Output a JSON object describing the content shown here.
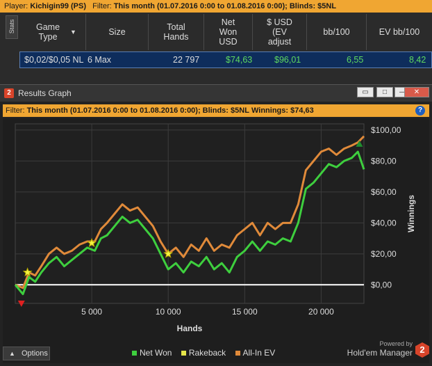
{
  "top_filter": {
    "player_label": "Player:",
    "player_value": "Kichigin99 (PS)",
    "filter_label": "Filter:",
    "filter_value": "This month (01.07.2016 0:00 to 01.08.2016 0:00); Blinds: $5NL"
  },
  "stats_tab_label": "Stats",
  "table": {
    "headers": [
      "Game Type",
      "Size",
      "Total Hands",
      "Net Won USD",
      "$ USD (EV adjust",
      "bb/100",
      "EV bb/100"
    ],
    "row": {
      "game_type": "$0,02/$0,05 NL",
      "size": "6 Max",
      "total_hands": "22 797",
      "net_won": "$74,63",
      "ev_adjust": "$96,01",
      "bb100": "6,55",
      "ev_bb100": "8,42"
    }
  },
  "graph_window": {
    "title": "Results Graph",
    "filter_label": "Filter:",
    "filter_value": "This month (01.07.2016 0:00 to 01.08.2016 0:00); Blinds: $5NL",
    "winnings_label": "Winnings:",
    "winnings_value": "$74,63",
    "options_label": "Options",
    "powered_by": "Powered by",
    "product": "Hold'em Manager",
    "buttons": {
      "minimize": "—",
      "maximize": "□",
      "close": "✕",
      "help": "?"
    }
  },
  "legend": [
    {
      "name": "Net Won",
      "color": "#3ecf3e"
    },
    {
      "name": "Rakeback",
      "color": "#e6e64a"
    },
    {
      "name": "All-In EV",
      "color": "#e08a3a"
    }
  ],
  "chart_data": {
    "type": "line",
    "xlabel": "Hands",
    "ylabel": "Winnings",
    "xlim": [
      0,
      22797
    ],
    "ylim": [
      -12,
      104
    ],
    "x_ticks": [
      5000,
      10000,
      15000,
      20000
    ],
    "x_tick_labels": [
      "5 000",
      "10 000",
      "15 000",
      "20 000"
    ],
    "y_ticks": [
      0,
      20,
      40,
      60,
      80,
      100
    ],
    "y_tick_labels": [
      "$0,00",
      "$20,00",
      "$40,00",
      "$60,00",
      "$80,00",
      "$100,00"
    ],
    "grid": true,
    "series": [
      {
        "name": "Net Won",
        "color": "#3ecf3e",
        "x": [
          0,
          500,
          900,
          1300,
          1700,
          2200,
          2700,
          3200,
          3700,
          4200,
          4700,
          5200,
          5600,
          6000,
          6500,
          7000,
          7500,
          8000,
          8500,
          9000,
          9500,
          10000,
          10500,
          11000,
          11500,
          12000,
          12500,
          13000,
          13500,
          14000,
          14500,
          15000,
          15500,
          16000,
          16500,
          17000,
          17500,
          18000,
          18500,
          19000,
          19500,
          20000,
          20500,
          21000,
          21500,
          22000,
          22400,
          22797
        ],
        "values": [
          0,
          -6,
          5,
          2,
          8,
          14,
          18,
          12,
          16,
          20,
          24,
          22,
          30,
          32,
          38,
          44,
          40,
          42,
          36,
          30,
          20,
          10,
          14,
          8,
          15,
          12,
          18,
          10,
          14,
          8,
          18,
          22,
          28,
          22,
          28,
          26,
          30,
          28,
          40,
          62,
          66,
          72,
          78,
          76,
          80,
          82,
          86,
          74.63
        ]
      },
      {
        "name": "All-In EV",
        "color": "#e08a3a",
        "x": [
          0,
          500,
          900,
          1300,
          1700,
          2200,
          2700,
          3200,
          3700,
          4200,
          4700,
          5200,
          5600,
          6000,
          6500,
          7000,
          7500,
          8000,
          8500,
          9000,
          9500,
          10000,
          10500,
          11000,
          11500,
          12000,
          12500,
          13000,
          13500,
          14000,
          14500,
          15000,
          15500,
          16000,
          16500,
          17000,
          17500,
          18000,
          18500,
          19000,
          19500,
          20000,
          20500,
          21000,
          21500,
          22000,
          22400,
          22797
        ],
        "values": [
          0,
          -2,
          8,
          6,
          12,
          20,
          24,
          20,
          22,
          26,
          28,
          28,
          36,
          40,
          46,
          52,
          48,
          50,
          44,
          38,
          28,
          20,
          24,
          18,
          26,
          22,
          30,
          22,
          26,
          24,
          32,
          36,
          40,
          32,
          40,
          36,
          40,
          40,
          52,
          74,
          80,
          86,
          88,
          84,
          88,
          90,
          92,
          96.01
        ]
      }
    ],
    "markers": [
      {
        "type": "rakeback-star",
        "x": 800,
        "y": 8
      },
      {
        "type": "rakeback-star",
        "x": 5000,
        "y": 27
      },
      {
        "type": "rakeback-star",
        "x": 10000,
        "y": 20
      },
      {
        "type": "low-triangle",
        "x": 400,
        "y": -12
      },
      {
        "type": "high-triangle",
        "x": 22500,
        "y": 91
      }
    ]
  }
}
